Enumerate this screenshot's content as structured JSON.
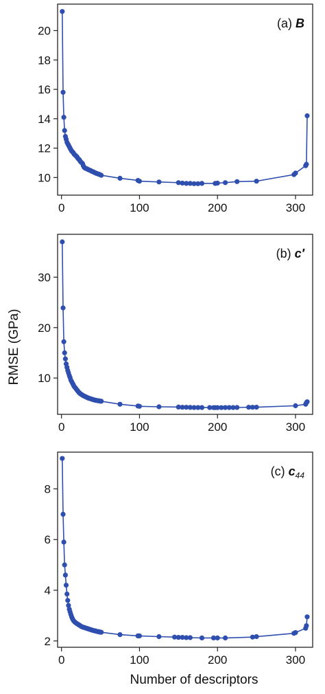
{
  "colors": {
    "series": "#2f4fae",
    "axis": "#222222",
    "background": "#ffffff"
  },
  "figure": {
    "ylabel": "RMSE (GPa)",
    "xlabel": "Number of descriptors"
  },
  "chart_data": [
    {
      "type": "line",
      "panel_label": "(a)",
      "panel_symbol": "B",
      "xlim": [
        -5,
        322
      ],
      "ylim": [
        8.8,
        21.8
      ],
      "xticks": [
        0,
        100,
        200,
        300
      ],
      "yticks": [
        10,
        12,
        14,
        16,
        18,
        20
      ],
      "x": [
        1,
        2,
        3,
        4,
        5,
        6,
        7,
        8,
        9,
        10,
        11,
        12,
        13,
        14,
        15,
        16,
        17,
        18,
        19,
        20,
        21,
        22,
        23,
        24,
        25,
        26,
        27,
        28,
        29,
        30,
        31,
        32,
        33,
        34,
        35,
        36,
        37,
        38,
        39,
        40,
        41,
        42,
        43,
        44,
        45,
        46,
        47,
        48,
        49,
        50,
        51,
        75,
        98,
        100,
        125,
        150,
        155,
        160,
        165,
        170,
        175,
        180,
        197,
        200,
        210,
        225,
        250,
        298,
        300,
        313,
        314,
        315
      ],
      "y": [
        21.3,
        15.8,
        14.1,
        13.2,
        12.8,
        12.6,
        12.4,
        12.3,
        12.2,
        12.1,
        12.0,
        11.9,
        11.8,
        11.75,
        11.7,
        11.6,
        11.55,
        11.5,
        11.45,
        11.4,
        11.3,
        11.25,
        11.2,
        11.1,
        11.05,
        11.0,
        10.95,
        10.8,
        10.7,
        10.65,
        10.62,
        10.6,
        10.58,
        10.55,
        10.52,
        10.5,
        10.48,
        10.45,
        10.42,
        10.4,
        10.38,
        10.35,
        10.32,
        10.3,
        10.28,
        10.26,
        10.24,
        10.22,
        10.2,
        10.18,
        10.15,
        9.95,
        9.8,
        9.75,
        9.7,
        9.65,
        9.62,
        9.6,
        9.6,
        9.58,
        9.58,
        9.6,
        9.6,
        9.62,
        9.65,
        9.72,
        9.75,
        10.2,
        10.3,
        10.8,
        10.9,
        14.2
      ]
    },
    {
      "type": "line",
      "panel_label": "(b)",
      "panel_symbol": "c′",
      "xlim": [
        -5,
        322
      ],
      "ylim": [
        2.8,
        38.5
      ],
      "xticks": [
        0,
        100,
        200,
        300
      ],
      "yticks": [
        10,
        20,
        30
      ],
      "x": [
        1,
        2,
        3,
        4,
        5,
        6,
        7,
        8,
        9,
        10,
        11,
        12,
        13,
        14,
        15,
        16,
        17,
        18,
        19,
        20,
        21,
        22,
        23,
        24,
        25,
        26,
        27,
        28,
        29,
        30,
        31,
        32,
        33,
        34,
        35,
        36,
        37,
        38,
        39,
        40,
        41,
        42,
        43,
        44,
        45,
        46,
        47,
        48,
        49,
        50,
        51,
        75,
        98,
        100,
        125,
        150,
        155,
        160,
        165,
        170,
        175,
        180,
        190,
        195,
        197,
        200,
        205,
        210,
        215,
        220,
        225,
        240,
        245,
        250,
        300,
        313,
        314,
        315
      ],
      "y": [
        37.0,
        23.9,
        17.2,
        15.0,
        13.8,
        12.8,
        12.1,
        11.5,
        11.0,
        10.5,
        10.1,
        9.6,
        9.3,
        9.0,
        8.7,
        8.4,
        8.2,
        8.0,
        7.8,
        7.6,
        7.4,
        7.2,
        7.05,
        6.9,
        6.8,
        6.7,
        6.6,
        6.5,
        6.42,
        6.35,
        6.28,
        6.2,
        6.12,
        6.05,
        6.0,
        5.95,
        5.9,
        5.85,
        5.8,
        5.75,
        5.7,
        5.65,
        5.62,
        5.58,
        5.55,
        5.52,
        5.5,
        5.48,
        5.45,
        5.42,
        5.4,
        4.8,
        4.45,
        4.4,
        4.3,
        4.25,
        4.2,
        4.2,
        4.18,
        4.15,
        4.15,
        4.15,
        4.15,
        4.14,
        4.14,
        4.14,
        4.14,
        4.15,
        4.15,
        4.15,
        4.16,
        4.2,
        4.2,
        4.22,
        4.5,
        4.8,
        5.1,
        5.3
      ]
    },
    {
      "type": "line",
      "panel_label": "(c)",
      "panel_symbol": "c44",
      "xlim": [
        -5,
        322
      ],
      "ylim": [
        1.75,
        9.45
      ],
      "xticks": [
        0,
        100,
        200,
        300
      ],
      "yticks": [
        2,
        4,
        6,
        8
      ],
      "x": [
        1,
        2,
        3,
        4,
        5,
        6,
        7,
        8,
        9,
        10,
        11,
        12,
        13,
        14,
        15,
        16,
        17,
        18,
        19,
        20,
        21,
        22,
        23,
        24,
        25,
        26,
        27,
        28,
        29,
        30,
        31,
        32,
        33,
        34,
        35,
        36,
        37,
        38,
        39,
        40,
        41,
        42,
        43,
        44,
        45,
        46,
        47,
        48,
        49,
        50,
        51,
        75,
        98,
        100,
        125,
        145,
        150,
        155,
        160,
        165,
        180,
        195,
        200,
        210,
        245,
        250,
        298,
        300,
        313,
        314,
        315
      ],
      "y": [
        9.2,
        7.0,
        5.9,
        5.0,
        4.6,
        4.2,
        3.85,
        3.6,
        3.4,
        3.25,
        3.15,
        3.05,
        2.95,
        2.88,
        2.82,
        2.78,
        2.75,
        2.72,
        2.7,
        2.68,
        2.66,
        2.64,
        2.62,
        2.6,
        2.58,
        2.56,
        2.55,
        2.54,
        2.53,
        2.52,
        2.51,
        2.5,
        2.49,
        2.48,
        2.47,
        2.46,
        2.45,
        2.44,
        2.43,
        2.42,
        2.41,
        2.4,
        2.4,
        2.39,
        2.38,
        2.37,
        2.37,
        2.36,
        2.35,
        2.35,
        2.34,
        2.25,
        2.2,
        2.2,
        2.17,
        2.15,
        2.14,
        2.14,
        2.13,
        2.13,
        2.12,
        2.12,
        2.12,
        2.12,
        2.15,
        2.17,
        2.3,
        2.33,
        2.5,
        2.6,
        2.95
      ]
    }
  ]
}
